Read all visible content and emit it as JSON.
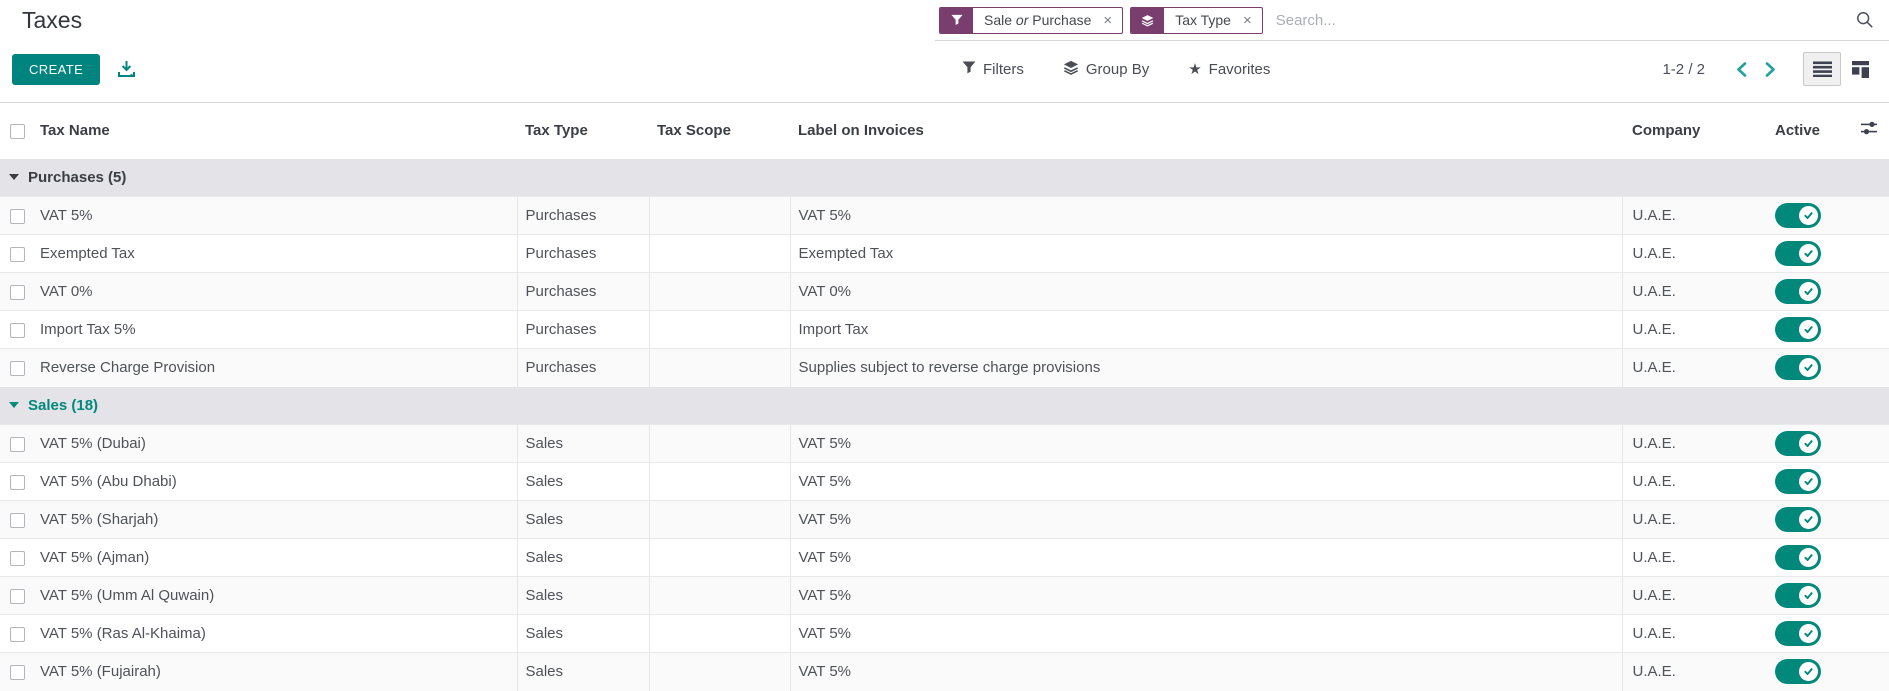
{
  "page_title": "Taxes",
  "search": {
    "placeholder": "Search...",
    "facets": [
      {
        "pre": "Sale ",
        "italic": "or",
        "post": " Purchase",
        "remove": "×"
      },
      {
        "label": "Tax Type",
        "remove": "×"
      }
    ]
  },
  "toolbar": {
    "create_label": "CREATE",
    "filters_label": "Filters",
    "group_by_label": "Group By",
    "favorites_label": "Favorites"
  },
  "pager": {
    "label": "1-2 / 2"
  },
  "table": {
    "columns": {
      "tax_name": "Tax Name",
      "tax_type": "Tax Type",
      "tax_scope": "Tax Scope",
      "label_on_invoices": "Label on Invoices",
      "company": "Company",
      "active": "Active"
    },
    "groups": [
      {
        "name": "purchases",
        "label": "Purchases (5)",
        "accent_teal": false,
        "rows": [
          {
            "tax_name": "VAT 5%",
            "tax_type": "Purchases",
            "tax_scope": "",
            "label_on_invoices": "VAT 5%",
            "company": "U.A.E.",
            "active": true
          },
          {
            "tax_name": "Exempted Tax",
            "tax_type": "Purchases",
            "tax_scope": "",
            "label_on_invoices": "Exempted Tax",
            "company": "U.A.E.",
            "active": true
          },
          {
            "tax_name": "VAT 0%",
            "tax_type": "Purchases",
            "tax_scope": "",
            "label_on_invoices": "VAT 0%",
            "company": "U.A.E.",
            "active": true
          },
          {
            "tax_name": "Import Tax 5%",
            "tax_type": "Purchases",
            "tax_scope": "",
            "label_on_invoices": "Import Tax",
            "company": "U.A.E.",
            "active": true
          },
          {
            "tax_name": "Reverse Charge Provision",
            "tax_type": "Purchases",
            "tax_scope": "",
            "label_on_invoices": "Supplies subject to reverse charge provisions",
            "company": "U.A.E.",
            "active": true
          }
        ]
      },
      {
        "name": "sales",
        "label": "Sales (18)",
        "accent_teal": true,
        "rows": [
          {
            "tax_name": "VAT 5% (Dubai)",
            "tax_type": "Sales",
            "tax_scope": "",
            "label_on_invoices": "VAT 5%",
            "company": "U.A.E.",
            "active": true
          },
          {
            "tax_name": "VAT 5% (Abu Dhabi)",
            "tax_type": "Sales",
            "tax_scope": "",
            "label_on_invoices": "VAT 5%",
            "company": "U.A.E.",
            "active": true
          },
          {
            "tax_name": "VAT 5% (Sharjah)",
            "tax_type": "Sales",
            "tax_scope": "",
            "label_on_invoices": "VAT 5%",
            "company": "U.A.E.",
            "active": true
          },
          {
            "tax_name": "VAT 5% (Ajman)",
            "tax_type": "Sales",
            "tax_scope": "",
            "label_on_invoices": "VAT 5%",
            "company": "U.A.E.",
            "active": true
          },
          {
            "tax_name": "VAT 5% (Umm Al Quwain)",
            "tax_type": "Sales",
            "tax_scope": "",
            "label_on_invoices": "VAT 5%",
            "company": "U.A.E.",
            "active": true
          },
          {
            "tax_name": "VAT 5% (Ras Al-Khaima)",
            "tax_type": "Sales",
            "tax_scope": "",
            "label_on_invoices": "VAT 5%",
            "company": "U.A.E.",
            "active": true
          },
          {
            "tax_name": "VAT 5% (Fujairah)",
            "tax_type": "Sales",
            "tax_scope": "",
            "label_on_invoices": "VAT 5%",
            "company": "U.A.E.",
            "active": true
          }
        ]
      }
    ]
  },
  "colors": {
    "primary_teal": "#00847F",
    "toggle_teal": "#00897B",
    "facet_purple": "#7A3E6E",
    "group_header_bg": "#E4E4E8",
    "pager_chevron_teal": "#21A09D"
  }
}
